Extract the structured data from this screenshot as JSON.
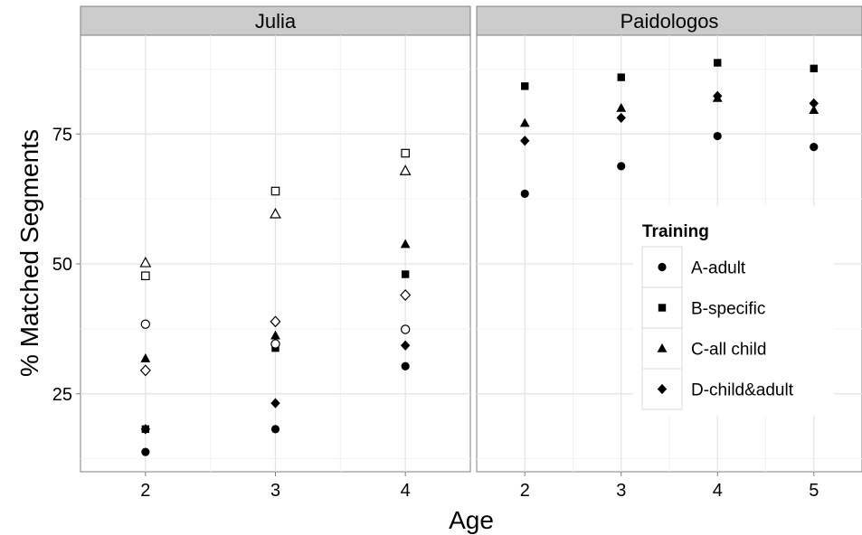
{
  "chart_data": {
    "type": "scatter",
    "xlabel": "Age",
    "ylabel": "% Matched Segments",
    "ylim": [
      10,
      94
    ],
    "yticks": [
      25,
      50,
      75
    ],
    "grid": true,
    "legend": {
      "title": "Training",
      "placement": "inside-right",
      "entries": [
        {
          "label": "A-adult",
          "shape": "circle"
        },
        {
          "label": "B-specific",
          "shape": "square"
        },
        {
          "label": "C-all child",
          "shape": "triangle"
        },
        {
          "label": "D-child&adult",
          "shape": "diamond"
        }
      ]
    },
    "panels": [
      {
        "name": "Julia",
        "xlim": [
          1.5,
          4.5
        ],
        "xticks": [
          2,
          3,
          4
        ],
        "series": [
          {
            "name": "A-adult",
            "shape": "circle",
            "filled": true,
            "x": [
              2,
              3,
              4
            ],
            "y": [
              13.8,
              18.2,
              30.3
            ]
          },
          {
            "name": "B-specific",
            "shape": "square",
            "filled": true,
            "x": [
              2,
              3,
              4
            ],
            "y": [
              18.2,
              33.8,
              48.0
            ]
          },
          {
            "name": "C-all child",
            "shape": "triangle",
            "filled": true,
            "x": [
              2,
              3,
              4
            ],
            "y": [
              31.8,
              36.2,
              53.8
            ]
          },
          {
            "name": "D-child&adult",
            "shape": "diamond",
            "filled": true,
            "x": [
              2,
              3,
              4
            ],
            "y": [
              18.2,
              23.2,
              34.3
            ]
          },
          {
            "name": "A-adult",
            "shape": "circle",
            "filled": false,
            "x": [
              2,
              3,
              4
            ],
            "y": [
              38.4,
              34.6,
              37.4
            ]
          },
          {
            "name": "B-specific",
            "shape": "square",
            "filled": false,
            "x": [
              2,
              3,
              4
            ],
            "y": [
              47.7,
              64.0,
              71.3
            ]
          },
          {
            "name": "C-all child",
            "shape": "triangle",
            "filled": false,
            "x": [
              2,
              3,
              4
            ],
            "y": [
              50.2,
              59.6,
              67.9
            ]
          },
          {
            "name": "D-child&adult",
            "shape": "diamond",
            "filled": false,
            "x": [
              2,
              3,
              4
            ],
            "y": [
              29.5,
              38.9,
              44.0
            ]
          }
        ]
      },
      {
        "name": "Paidologos",
        "xlim": [
          1.5,
          5.5
        ],
        "xticks": [
          2,
          3,
          4,
          5
        ],
        "series": [
          {
            "name": "A-adult",
            "shape": "circle",
            "filled": true,
            "x": [
              2,
              3,
              4,
              5
            ],
            "y": [
              63.5,
              68.8,
              74.6,
              72.5
            ]
          },
          {
            "name": "B-specific",
            "shape": "square",
            "filled": true,
            "x": [
              2,
              3,
              4,
              5
            ],
            "y": [
              84.2,
              85.9,
              88.7,
              87.6
            ]
          },
          {
            "name": "C-all child",
            "shape": "triangle",
            "filled": true,
            "x": [
              2,
              3,
              4,
              5
            ],
            "y": [
              77.1,
              80.0,
              81.9,
              79.6
            ]
          },
          {
            "name": "D-child&adult",
            "shape": "diamond",
            "filled": true,
            "x": [
              2,
              3,
              4,
              5
            ],
            "y": [
              73.7,
              78.1,
              82.3,
              80.9
            ]
          }
        ]
      }
    ]
  }
}
